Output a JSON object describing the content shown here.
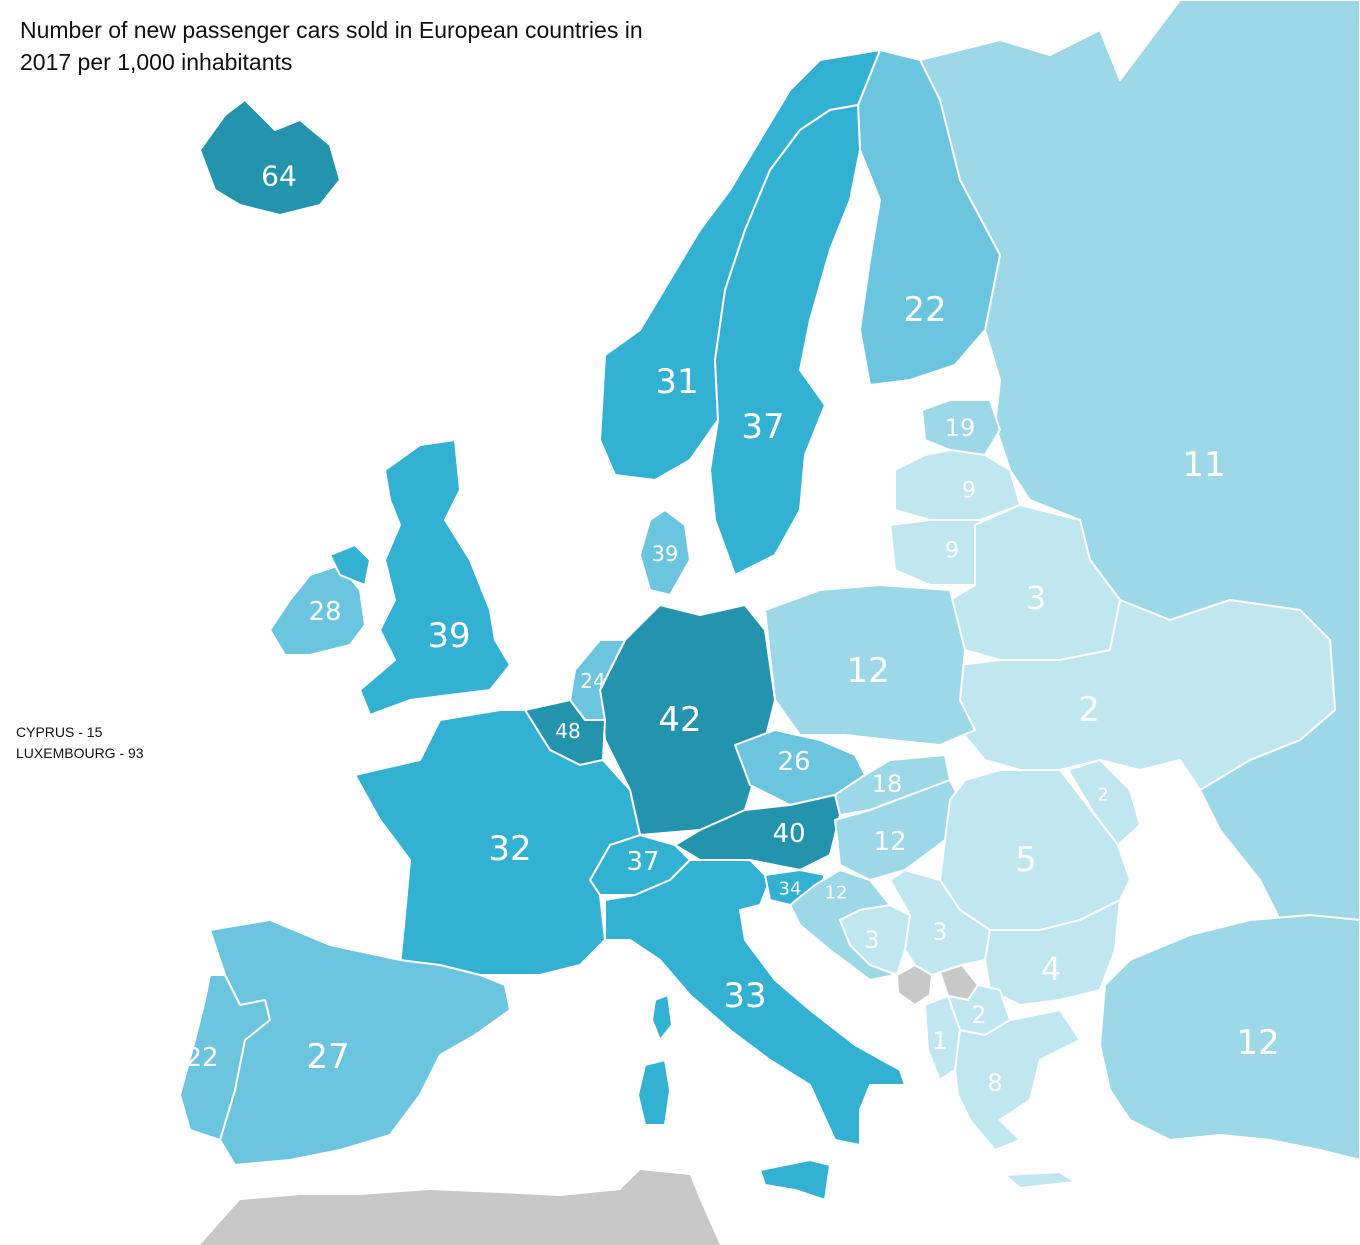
{
  "title": {
    "line1": "Number of new passenger cars sold in European countries in",
    "line2": "2017 per 1,000 inhabitants"
  },
  "notes": [
    {
      "text": "CYPRUS - 15"
    },
    {
      "text": "LUXEMBOURG - 93"
    }
  ],
  "colors": {
    "water": "#ffffff",
    "nodata": "#c8c8c8",
    "very_light": "#c0e6f0",
    "light": "#9dd8e8",
    "medium": "#6bc5df",
    "strong": "#33b1d3",
    "dark": "#2494ae",
    "border": "#ffffff",
    "label": "#ffffff"
  },
  "countries": [
    {
      "name": "Iceland",
      "value": 64
    },
    {
      "name": "Norway",
      "value": 31
    },
    {
      "name": "Sweden",
      "value": 37
    },
    {
      "name": "Finland",
      "value": 22
    },
    {
      "name": "Russia",
      "value": 11
    },
    {
      "name": "Estonia",
      "value": 19
    },
    {
      "name": "Latvia",
      "value": 9
    },
    {
      "name": "Lithuania",
      "value": 9
    },
    {
      "name": "Belarus",
      "value": 3
    },
    {
      "name": "Denmark",
      "value": 39
    },
    {
      "name": "Ireland",
      "value": 28
    },
    {
      "name": "United Kingdom",
      "value": 39
    },
    {
      "name": "Netherlands",
      "value": 24
    },
    {
      "name": "Belgium",
      "value": 48
    },
    {
      "name": "Germany",
      "value": 42
    },
    {
      "name": "Poland",
      "value": 12
    },
    {
      "name": "Ukraine",
      "value": 2
    },
    {
      "name": "Czech Republic",
      "value": 26
    },
    {
      "name": "Slovakia",
      "value": 18
    },
    {
      "name": "Moldova",
      "value": 2
    },
    {
      "name": "France",
      "value": 32
    },
    {
      "name": "Switzerland",
      "value": 37
    },
    {
      "name": "Austria",
      "value": 40
    },
    {
      "name": "Hungary",
      "value": 12
    },
    {
      "name": "Romania",
      "value": 5
    },
    {
      "name": "Slovenia",
      "value": 34
    },
    {
      "name": "Croatia",
      "value": 12
    },
    {
      "name": "Bosnia and Herzegovina",
      "value": 3
    },
    {
      "name": "Serbia",
      "value": 3
    },
    {
      "name": "Bulgaria",
      "value": 4
    },
    {
      "name": "Italy",
      "value": 33
    },
    {
      "name": "North Macedonia",
      "value": 2
    },
    {
      "name": "Albania",
      "value": 1
    },
    {
      "name": "Greece",
      "value": 8
    },
    {
      "name": "Turkey",
      "value": 12
    },
    {
      "name": "Spain",
      "value": 27
    },
    {
      "name": "Portugal",
      "value": 22
    }
  ]
}
